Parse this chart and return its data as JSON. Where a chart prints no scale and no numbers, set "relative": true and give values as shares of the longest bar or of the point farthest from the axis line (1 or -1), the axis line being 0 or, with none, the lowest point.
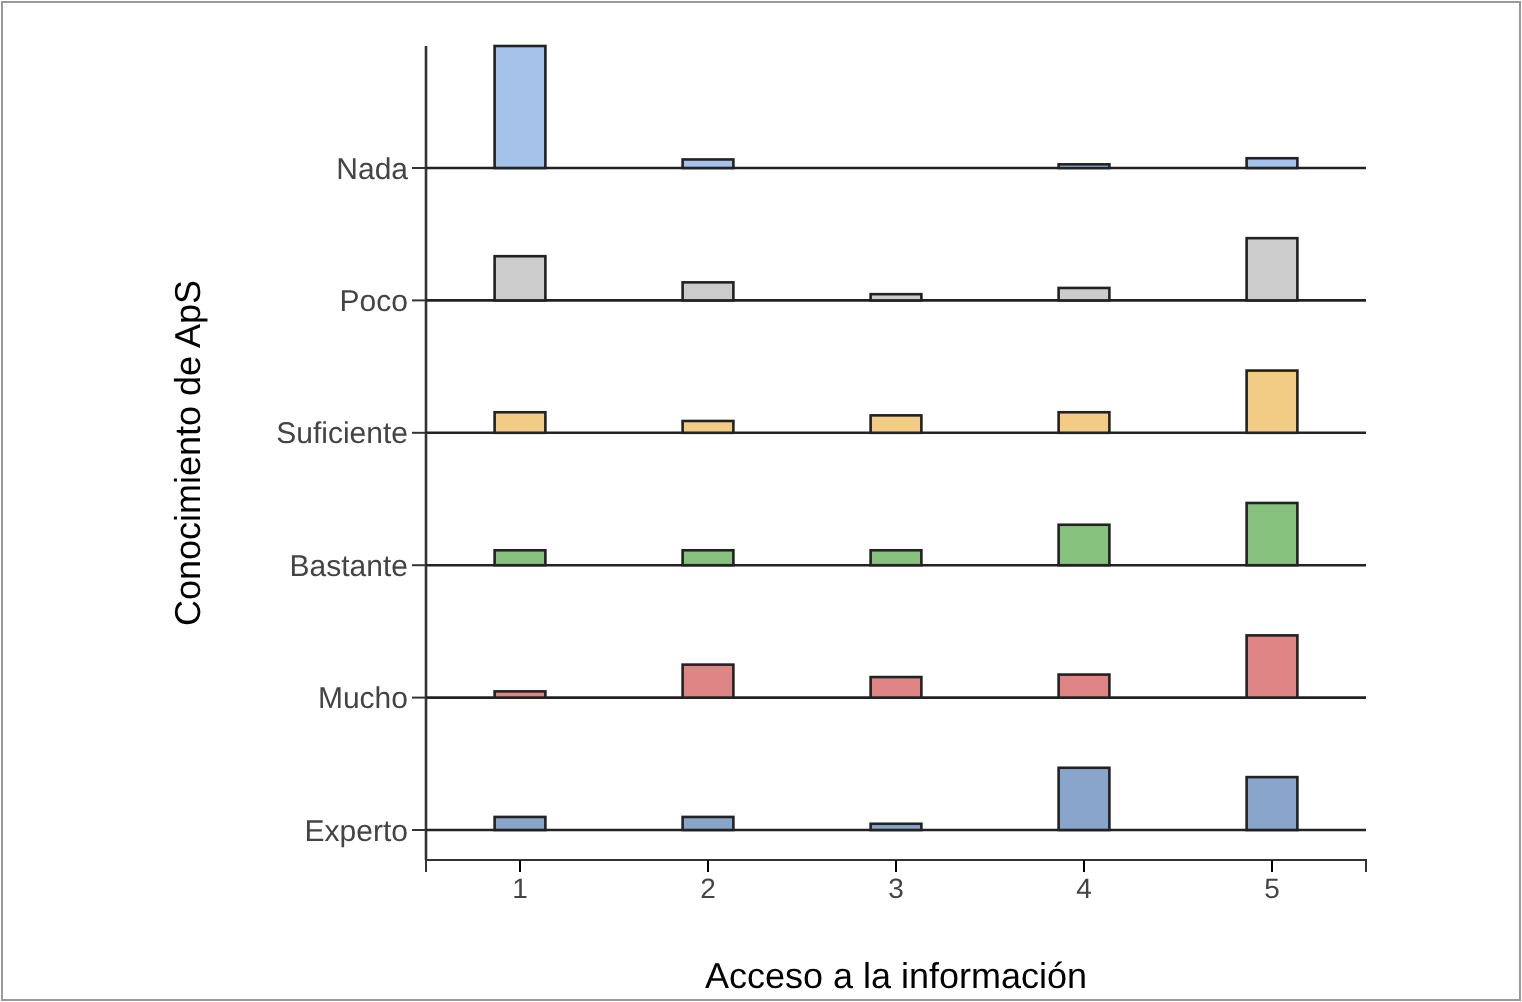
{
  "chart_data": [
    {
      "type": "bar",
      "relative": true,
      "title": "Nada",
      "x": [
        1,
        2,
        3,
        4,
        5
      ],
      "xlim": [
        0.5,
        5.5
      ],
      "tick_labels": false,
      "color": "#a4c2ea",
      "values": [
        1.0,
        0.07,
        0,
        0.03,
        0.08
      ]
    },
    {
      "type": "bar",
      "relative": true,
      "title": "Poco",
      "x": [
        1,
        2,
        3,
        4,
        5
      ],
      "xlim": [
        0.5,
        5.5
      ],
      "tick_labels": false,
      "color": "#cccccc",
      "values": [
        0.71,
        0.29,
        0.1,
        0.2,
        1
      ]
    },
    {
      "type": "bar",
      "relative": true,
      "title": "Suficiente",
      "x": [
        1,
        2,
        3,
        4,
        5
      ],
      "xlim": [
        0.5,
        5.5
      ],
      "tick_labels": false,
      "color": "#f2cc85",
      "values": [
        0.33,
        0.19,
        0.28,
        0.33,
        1
      ]
    },
    {
      "type": "bar",
      "relative": true,
      "title": "Bastante",
      "x": [
        1,
        2,
        3,
        4,
        5
      ],
      "xlim": [
        0.5,
        5.5
      ],
      "tick_labels": false,
      "color": "#86c27e",
      "values": [
        0.24,
        0.24,
        0.24,
        0.65,
        1
      ]
    },
    {
      "type": "bar",
      "relative": true,
      "title": "Mucho",
      "x": [
        1,
        2,
        3,
        4,
        5
      ],
      "xlim": [
        0.5,
        5.5
      ],
      "tick_labels": false,
      "color": "#e08585",
      "values": [
        0.1,
        0.53,
        0.33,
        0.37,
        1
      ]
    },
    {
      "type": "bar",
      "relative": true,
      "title": "Experto",
      "x": [
        1,
        2,
        3,
        4,
        5
      ],
      "xlim": [
        0.5,
        5.5
      ],
      "xticks": [
        1,
        2,
        3,
        4,
        5
      ],
      "tick_labels": "x",
      "color": "#8aa5cc",
      "values": [
        0.21,
        0.21,
        0.1,
        1,
        0.85
      ],
      "xlabel": "Acceso a la información",
      "annotations": [
        "Conocimiento de ApS"
      ]
    }
  ]
}
